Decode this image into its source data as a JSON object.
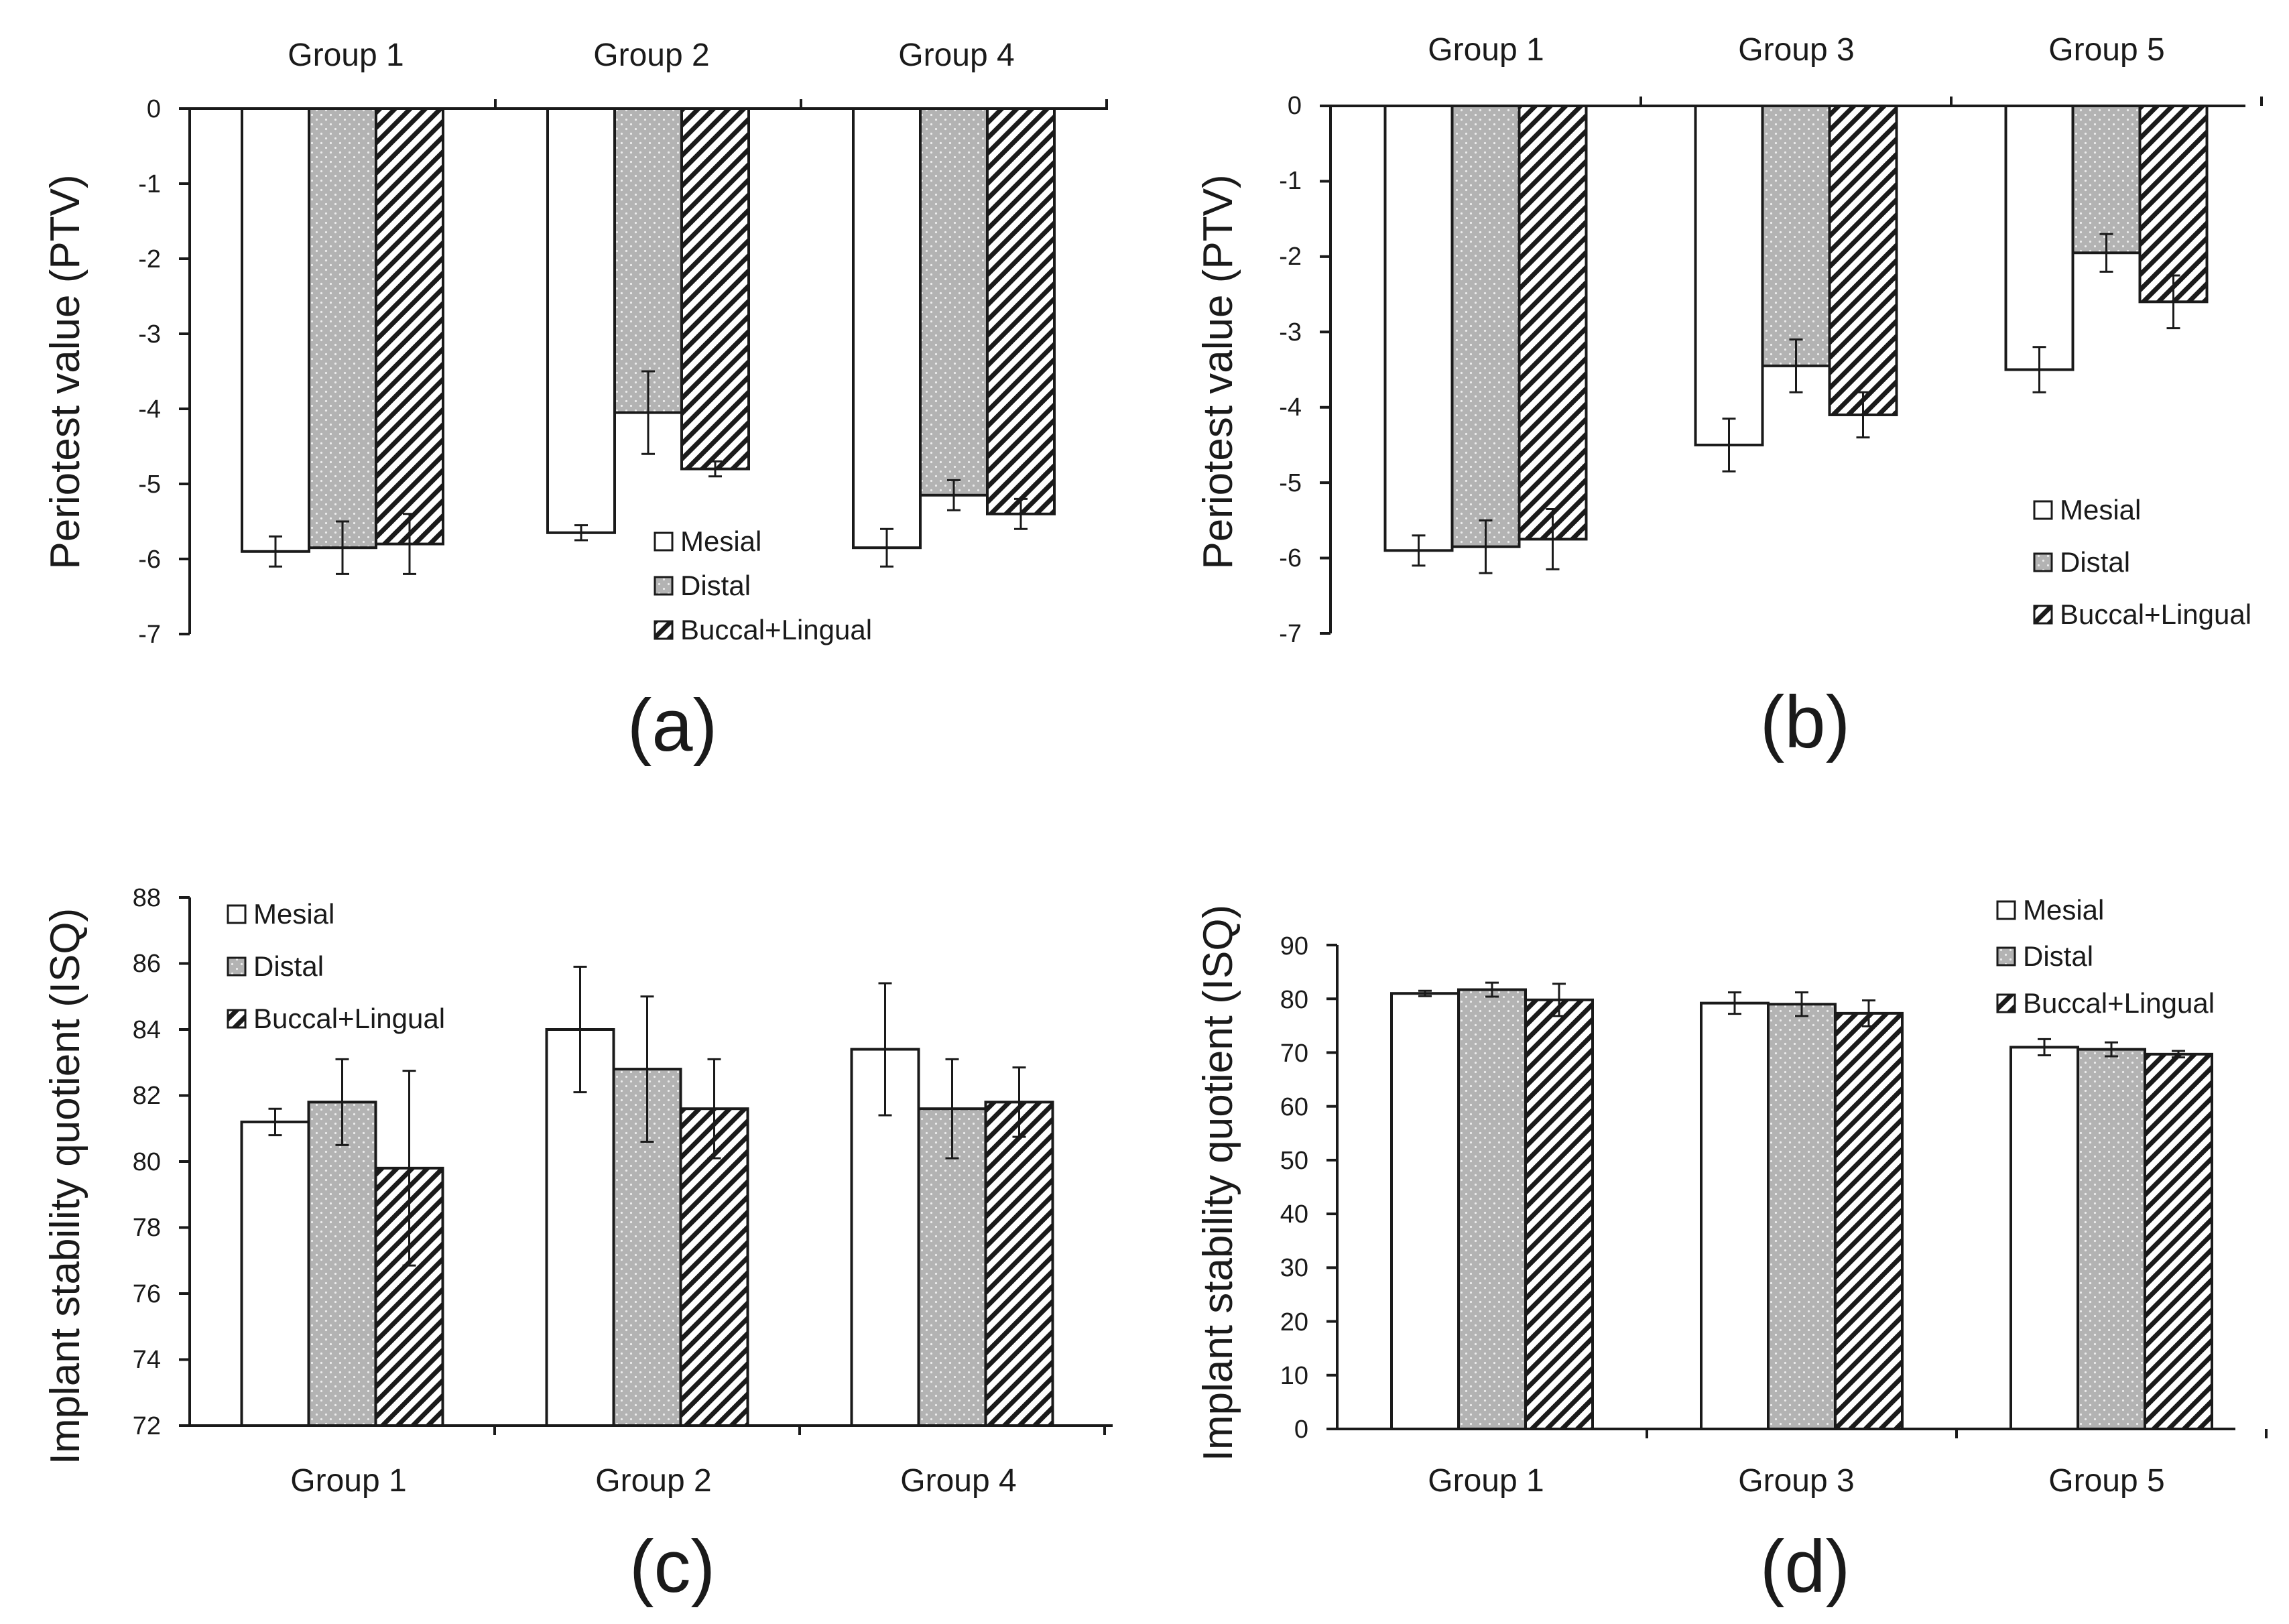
{
  "colors": {
    "mesial": "#ffffff",
    "distal": "#b3b3b3",
    "buccal_lingual": "#ffffff",
    "axis": "#1a1a1a"
  },
  "chart_data": [
    {
      "id": "a",
      "type": "bar",
      "panel_label": "(a)",
      "categories": [
        "Group 1",
        "Group 2",
        "Group 4"
      ],
      "category_axis_position": "top",
      "ylabel": "Periotest value (PTV)",
      "ylim": [
        -7,
        0
      ],
      "ytick_step": 1,
      "yticks": [
        "0",
        "-1",
        "-2",
        "-3",
        "-4",
        "-5",
        "-6",
        "-7"
      ],
      "legend_position": "bottom-center",
      "series": [
        {
          "name": "Mesial",
          "values": [
            -5.9,
            -5.65,
            -5.85
          ],
          "errors": [
            0.2,
            0.1,
            0.25
          ]
        },
        {
          "name": "Distal",
          "values": [
            -5.85,
            -4.05,
            -5.15
          ],
          "errors": [
            0.35,
            0.55,
            0.2
          ]
        },
        {
          "name": "Buccal+Lingual",
          "values": [
            -5.8,
            -4.8,
            -5.4
          ],
          "errors": [
            0.4,
            0.1,
            0.2
          ]
        }
      ]
    },
    {
      "id": "b",
      "type": "bar",
      "panel_label": "(b)",
      "categories": [
        "Group 1",
        "Group 3",
        "Group 5"
      ],
      "category_axis_position": "top",
      "ylabel": "Periotest value (PTV)",
      "ylim": [
        -7,
        0
      ],
      "ytick_step": 1,
      "yticks": [
        "0",
        "-1",
        "-2",
        "-3",
        "-4",
        "-5",
        "-6",
        "-7"
      ],
      "legend_position": "bottom-right",
      "series": [
        {
          "name": "Mesial",
          "values": [
            -5.9,
            -4.5,
            -3.5
          ],
          "errors": [
            0.2,
            0.35,
            0.3
          ]
        },
        {
          "name": "Distal",
          "values": [
            -5.85,
            -3.45,
            -1.95
          ],
          "errors": [
            0.35,
            0.35,
            0.25
          ]
        },
        {
          "name": "Buccal+Lingual",
          "values": [
            -5.75,
            -4.1,
            -2.6
          ],
          "errors": [
            0.4,
            0.3,
            0.35
          ]
        }
      ]
    },
    {
      "id": "c",
      "type": "bar",
      "panel_label": "(c)",
      "categories": [
        "Group 1",
        "Group 2",
        "Group 4"
      ],
      "category_axis_position": "bottom",
      "ylabel": "Implant stability quotient (ISQ)",
      "ylim": [
        72,
        88
      ],
      "ytick_step": 2,
      "yticks": [
        "72",
        "74",
        "76",
        "78",
        "80",
        "82",
        "84",
        "86",
        "88"
      ],
      "legend_position": "top-left",
      "series": [
        {
          "name": "Mesial",
          "values": [
            81.2,
            84.0,
            83.4
          ],
          "errors": [
            0.4,
            1.9,
            2.0
          ]
        },
        {
          "name": "Distal",
          "values": [
            81.8,
            82.8,
            81.6
          ],
          "errors": [
            1.3,
            2.2,
            1.5
          ]
        },
        {
          "name": "Buccal+Lingual",
          "values": [
            79.8,
            81.6,
            81.8
          ],
          "errors": [
            2.95,
            1.5,
            1.05
          ]
        }
      ]
    },
    {
      "id": "d",
      "type": "bar",
      "panel_label": "(d)",
      "categories": [
        "Group 1",
        "Group 3",
        "Group 5"
      ],
      "category_axis_position": "bottom",
      "ylabel": "Implant stability quotient (ISQ)",
      "ylim": [
        0,
        90
      ],
      "ytick_step": 10,
      "yticks": [
        "0",
        "10",
        "20",
        "30",
        "40",
        "50",
        "60",
        "70",
        "80",
        "90"
      ],
      "legend_position": "top-right",
      "series": [
        {
          "name": "Mesial",
          "values": [
            81.0,
            79.2,
            71.0
          ],
          "errors": [
            0.5,
            2.0,
            1.5
          ]
        },
        {
          "name": "Distal",
          "values": [
            81.7,
            79.0,
            70.6
          ],
          "errors": [
            1.3,
            2.2,
            1.3
          ]
        },
        {
          "name": "Buccal+Lingual",
          "values": [
            79.8,
            77.3,
            69.7
          ],
          "errors": [
            3.0,
            2.4,
            0.6
          ]
        }
      ]
    }
  ]
}
